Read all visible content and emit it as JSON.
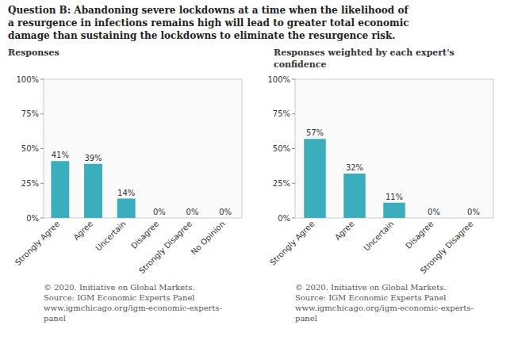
{
  "title": [
    "Question B: Abandoning severe lockdowns at a time when the likelihood of",
    "a resurgence in infections remains high will lead to greater total economic",
    "damage than sustaining the lockdowns to eliminate the resurgence risk."
  ],
  "chart_data": [
    {
      "type": "bar",
      "title": [
        "Responses"
      ],
      "categories": [
        "Strongly Agree",
        "Agree",
        "Uncertain",
        "Disagree",
        "Strongly Disagree",
        "No Opinion"
      ],
      "values": [
        41,
        39,
        14,
        0,
        0,
        0
      ],
      "value_labels": [
        "41%",
        "39%",
        "14%",
        "0%",
        "0%",
        "0%"
      ],
      "data_labels": true,
      "color": "#3aaebc",
      "ylim": [
        0,
        100
      ],
      "yticks": [
        {
          "value": 0,
          "label": "0%"
        },
        {
          "value": 25,
          "label": "25%"
        },
        {
          "value": 50,
          "label": "50%"
        },
        {
          "value": 75,
          "label": "75%"
        },
        {
          "value": 100,
          "label": "100%"
        }
      ],
      "grid": false,
      "annotations": [
        "© 2020. Initiative on Global Markets.",
        "Source: IGM Economic Experts Panel",
        "www.igmchicago.org/igm-economic-experts-",
        "panel"
      ]
    },
    {
      "type": "bar",
      "title": [
        "Responses weighted by each expert's",
        "confidence"
      ],
      "categories": [
        "Strongly Agree",
        "Agree",
        "Uncertain",
        "Disagree",
        "Strongly Disagree"
      ],
      "values": [
        57,
        32,
        11,
        0,
        0
      ],
      "value_labels": [
        "57%",
        "32%",
        "11%",
        "0%",
        "0%"
      ],
      "data_labels": true,
      "color": "#3aaebc",
      "ylim": [
        0,
        100
      ],
      "yticks": [
        {
          "value": 0,
          "label": "0%"
        },
        {
          "value": 25,
          "label": "25%"
        },
        {
          "value": 50,
          "label": "50%"
        },
        {
          "value": 75,
          "label": "75%"
        },
        {
          "value": 100,
          "label": "100%"
        }
      ],
      "grid": false,
      "annotations": [
        "© 2020. Initiative on Global Markets.",
        "Source: IGM Economic Experts Panel",
        "www.igmchicago.org/igm-economic-experts-",
        "panel"
      ]
    }
  ]
}
